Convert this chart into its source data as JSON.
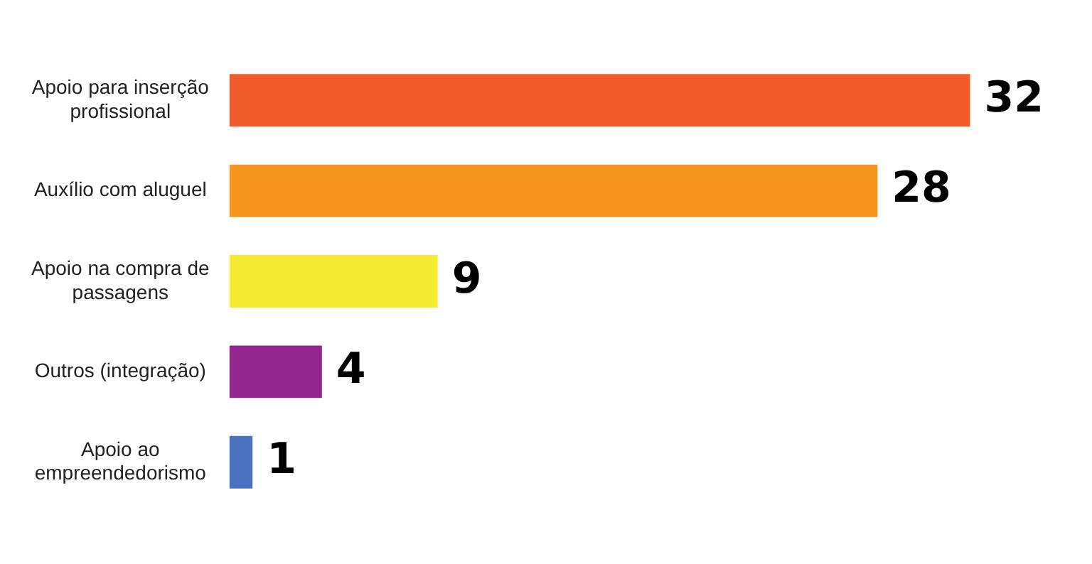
{
  "chart_data": {
    "type": "bar",
    "orientation": "horizontal",
    "data_labels": true,
    "grid": false,
    "legend": false,
    "categories": [
      "Apoio para inserção profissional",
      "Auxílio com aluguel",
      "Apoio na compra de passagens",
      "Outros (integração)",
      "Apoio ao empreendedorismo"
    ],
    "values": [
      32,
      28,
      9,
      4,
      1
    ],
    "colors": [
      "#f15a2b",
      "#f7941e",
      "#f4eb33",
      "#93278f",
      "#4a72c0"
    ]
  }
}
